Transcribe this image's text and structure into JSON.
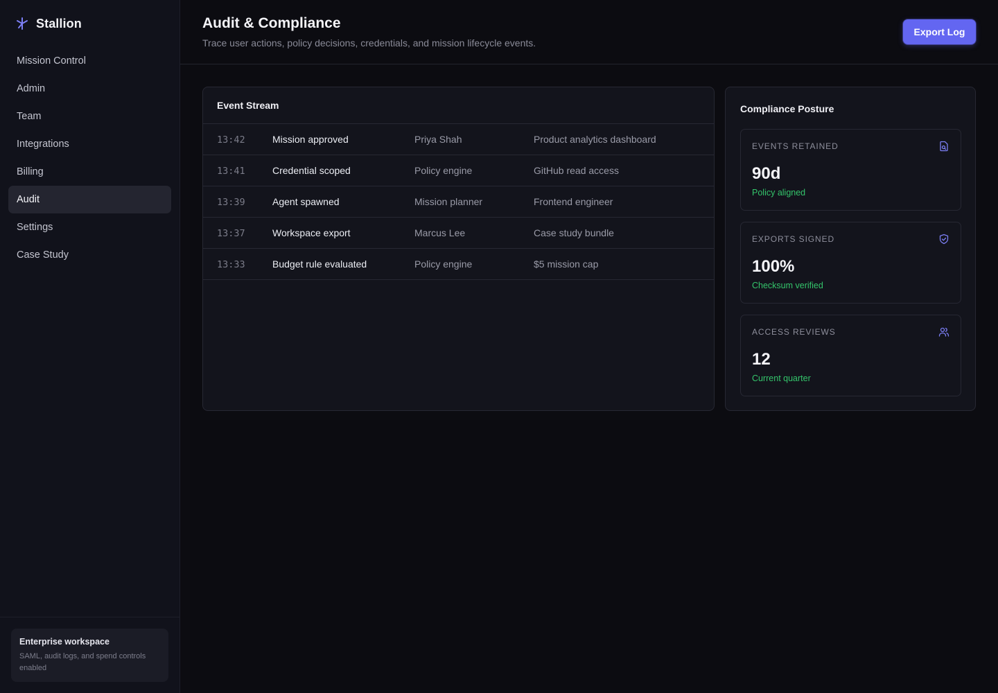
{
  "app": {
    "name": "Stallion"
  },
  "sidebar": {
    "items": [
      {
        "label": "Mission Control"
      },
      {
        "label": "Admin"
      },
      {
        "label": "Team"
      },
      {
        "label": "Integrations"
      },
      {
        "label": "Billing"
      },
      {
        "label": "Audit",
        "active": true
      },
      {
        "label": "Settings"
      },
      {
        "label": "Case Study"
      }
    ],
    "workspace": {
      "title": "Enterprise workspace",
      "description": "SAML, audit logs, and spend controls enabled"
    }
  },
  "header": {
    "title": "Audit & Compliance",
    "subtitle": "Trace user actions, policy decisions, credentials, and mission lifecycle events.",
    "export_label": "Export Log"
  },
  "event_stream": {
    "title": "Event Stream",
    "rows": [
      {
        "time": "13:42",
        "event": "Mission approved",
        "actor": "Priya Shah",
        "target": "Product analytics dashboard"
      },
      {
        "time": "13:41",
        "event": "Credential scoped",
        "actor": "Policy engine",
        "target": "GitHub read access"
      },
      {
        "time": "13:39",
        "event": "Agent spawned",
        "actor": "Mission planner",
        "target": "Frontend engineer"
      },
      {
        "time": "13:37",
        "event": "Workspace export",
        "actor": "Marcus Lee",
        "target": "Case study bundle"
      },
      {
        "time": "13:33",
        "event": "Budget rule evaluated",
        "actor": "Policy engine",
        "target": "$5 mission cap"
      }
    ]
  },
  "compliance": {
    "title": "Compliance Posture",
    "metrics": [
      {
        "label": "EVENTS RETAINED",
        "value": "90d",
        "note": "Policy aligned",
        "icon": "file-search-icon"
      },
      {
        "label": "EXPORTS SIGNED",
        "value": "100%",
        "note": "Checksum verified",
        "icon": "shield-check-icon"
      },
      {
        "label": "ACCESS REVIEWS",
        "value": "12",
        "note": "Current quarter",
        "icon": "users-icon"
      }
    ]
  },
  "colors": {
    "accent": "#6366f1",
    "success": "#34c56b",
    "background": "#0c0c11",
    "sidebar": "#11121b"
  }
}
